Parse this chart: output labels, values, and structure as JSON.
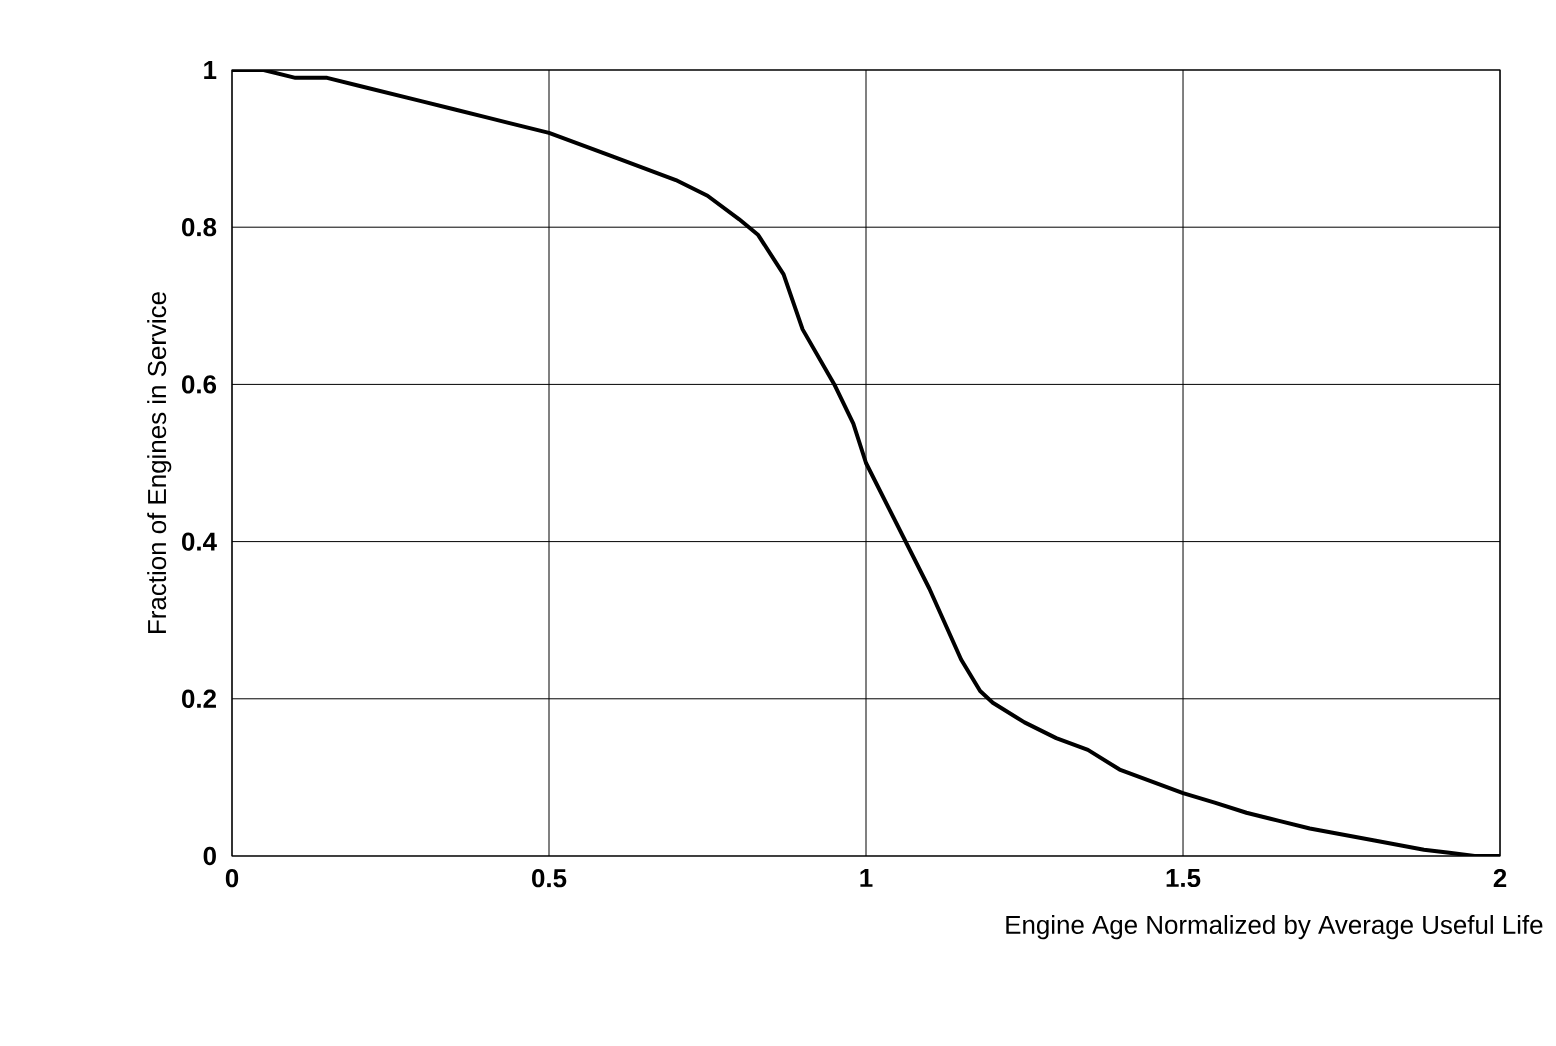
{
  "chart_data": {
    "type": "line",
    "xlabel": "Engine Age Normalized by Average Useful Life",
    "ylabel": "Fraction of Engines in Service",
    "xlim": [
      0,
      2
    ],
    "ylim": [
      0,
      1
    ],
    "xticks": [
      0,
      0.5,
      1,
      1.5,
      2
    ],
    "yticks": [
      0,
      0.2,
      0.4,
      0.6,
      0.8,
      1
    ],
    "grid": true,
    "marker": "none",
    "line_style": "solid",
    "series": [
      {
        "color": "#000000",
        "x": [
          0,
          0.05,
          0.1,
          0.15,
          0.2,
          0.3,
          0.35,
          0.4,
          0.5,
          0.6,
          0.7,
          0.75,
          0.8,
          0.83,
          0.87,
          0.9,
          0.95,
          0.98,
          1.0,
          1.05,
          1.1,
          1.15,
          1.18,
          1.2,
          1.25,
          1.3,
          1.35,
          1.4,
          1.5,
          1.55,
          1.6,
          1.65,
          1.7,
          1.8,
          1.88,
          1.92,
          1.96,
          2.0
        ],
        "values": [
          1,
          1,
          0.99,
          0.99,
          0.98,
          0.96,
          0.95,
          0.94,
          0.92,
          0.89,
          0.86,
          0.84,
          0.81,
          0.79,
          0.74,
          0.67,
          0.6,
          0.55,
          0.5,
          0.42,
          0.34,
          0.25,
          0.21,
          0.195,
          0.17,
          0.15,
          0.135,
          0.11,
          0.08,
          0.068,
          0.055,
          0.045,
          0.035,
          0.02,
          0.008,
          0.004,
          0,
          0
        ]
      }
    ]
  }
}
